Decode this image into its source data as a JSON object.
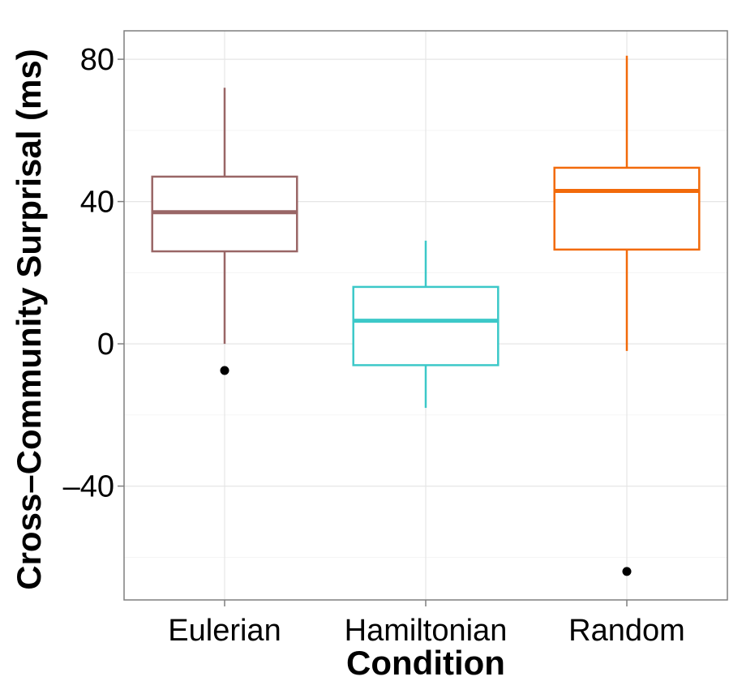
{
  "chart_data": {
    "type": "box",
    "title": "",
    "xlabel": "Condition",
    "ylabel": "Cross–Community Surprisal (ms)",
    "categories": [
      "Eulerian",
      "Hamiltonian",
      "Random"
    ],
    "ylim": [
      -72,
      88
    ],
    "yticks": [
      -40,
      0,
      40,
      80
    ],
    "ytick_labels": [
      "–40",
      "0",
      "40",
      "80"
    ],
    "grid": true,
    "legend": "none",
    "boxes": [
      {
        "category": "Eulerian",
        "whisker_low": 0,
        "q1": 26,
        "median": 37,
        "q3": 47,
        "whisker_high": 72,
        "outliers": [
          -7.5
        ],
        "color": "#996666"
      },
      {
        "category": "Hamiltonian",
        "whisker_low": -18,
        "q1": -6,
        "median": 6.5,
        "q3": 16,
        "whisker_high": 29,
        "outliers": [],
        "color": "#3cc8c8"
      },
      {
        "category": "Random",
        "whisker_low": -2,
        "q1": 26.5,
        "median": 43,
        "q3": 49.5,
        "whisker_high": 81,
        "outliers": [
          -64
        ],
        "color": "#f26a0a"
      }
    ]
  }
}
